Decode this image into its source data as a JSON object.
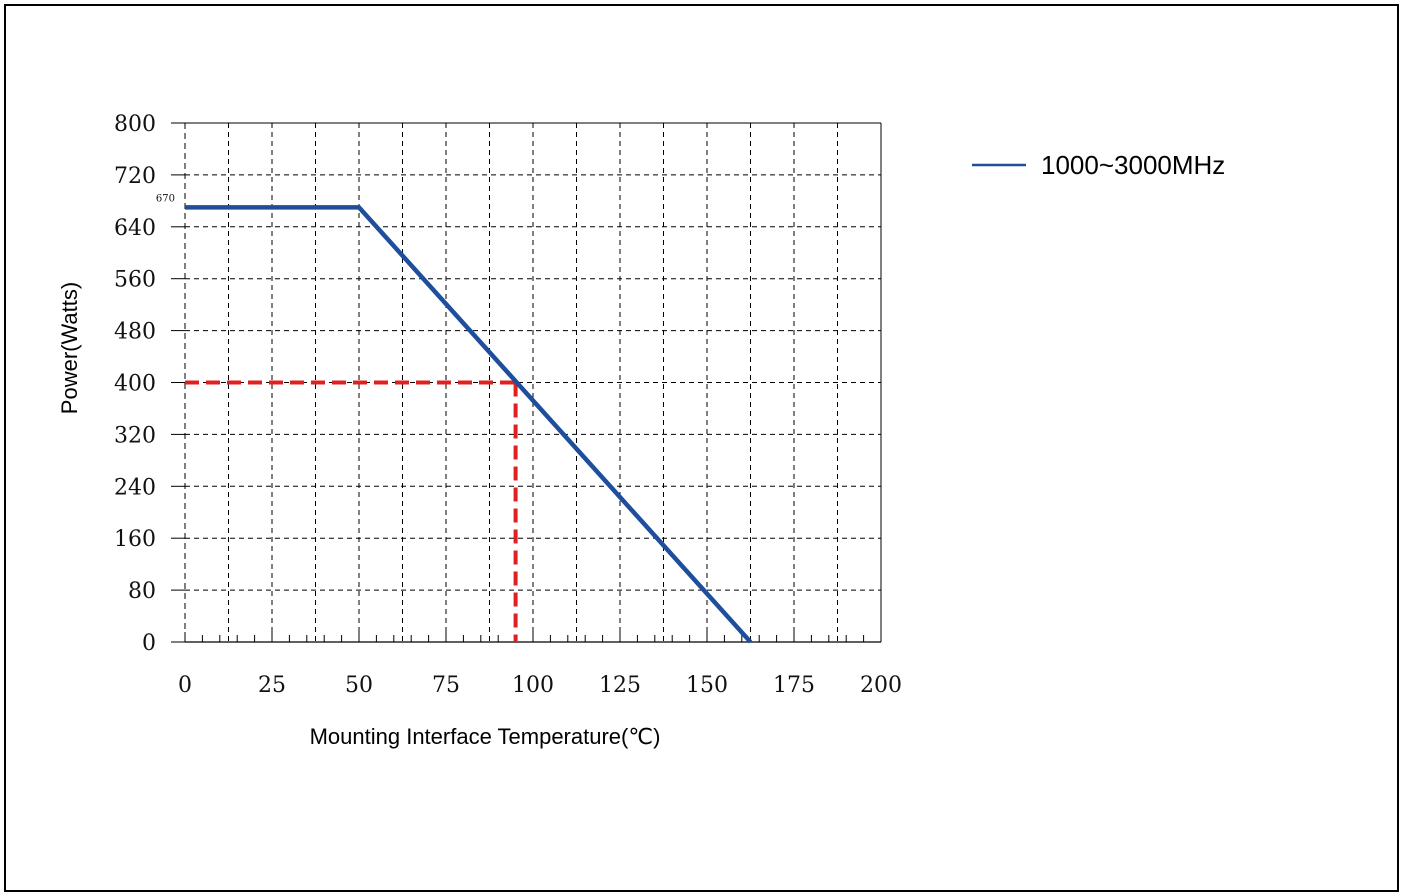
{
  "chart_data": {
    "type": "line",
    "xlabel": "Mounting Interface Temperature(℃)",
    "ylabel": "Power(Watts)",
    "xlim": [
      0,
      200
    ],
    "ylim": [
      0,
      800
    ],
    "x_ticks": [
      "0",
      "25",
      "50",
      "75",
      "100",
      "125",
      "150",
      "175",
      "200"
    ],
    "y_ticks": [
      "0",
      "80",
      "160",
      "240",
      "320",
      "400",
      "480",
      "560",
      "640",
      "720",
      "800"
    ],
    "grid": true,
    "legend_position": "top-right, outside plot",
    "series": [
      {
        "name": "1000~3000MHz",
        "color": "#1f4e9c",
        "x": [
          0,
          50,
          162.5
        ],
        "y": [
          670,
          670,
          0
        ]
      }
    ],
    "annotations": [
      {
        "text": "670",
        "x": 0,
        "y": 670
      }
    ],
    "reference_lines": {
      "color": "#e02020",
      "style": "dashed",
      "x": 95,
      "y": 400
    }
  }
}
